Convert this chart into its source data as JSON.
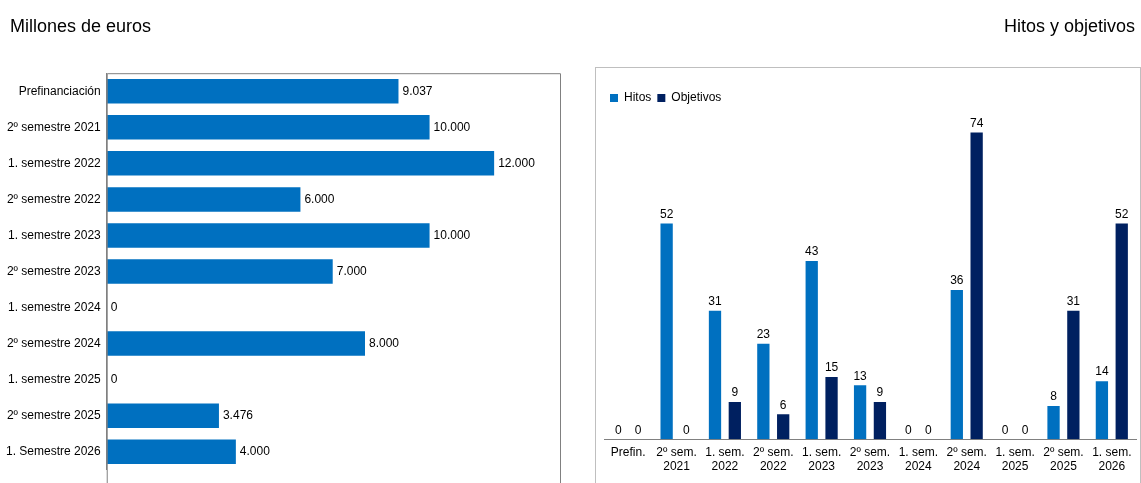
{
  "chart_data": [
    {
      "type": "bar",
      "title": "Millones de euros",
      "orientation": "horizontal",
      "categories": [
        "Prefinanciación",
        "2º semestre 2021",
        "1. semestre 2022",
        "2º semestre 2022",
        "1. semestre 2023",
        "2º semestre 2023",
        "1. semestre 2024",
        "2º semestre 2024",
        "1. semestre 2025",
        "2º semestre 2025",
        "1. Semestre 2026"
      ],
      "values": [
        9037,
        10000,
        12000,
        6000,
        10000,
        7000,
        0,
        8000,
        0,
        3476,
        4000
      ],
      "color": "#0070c0",
      "value_labels": [
        "9.037",
        "10.000",
        "12.000",
        "6.000",
        "10.000",
        "7.000",
        "0",
        "8.000",
        "0",
        "3.476",
        "4.000"
      ],
      "grid": false,
      "tick_labels": "y"
    },
    {
      "type": "bar",
      "title": "Hitos y objetivos",
      "categories": [
        "Prefin.",
        "2º sem. 2021",
        "1. sem. 2022",
        "2º sem. 2022",
        "1. sem. 2023",
        "2º sem. 2023",
        "1. sem. 2024",
        "2º sem. 2024",
        "1. sem. 2025",
        "2º sem. 2025",
        "1. sem. 2026"
      ],
      "series": [
        {
          "name": "Hitos",
          "color": "#0070c0",
          "values": [
            0,
            52,
            31,
            23,
            43,
            13,
            0,
            36,
            0,
            8,
            14
          ]
        },
        {
          "name": "Objetivos",
          "color": "#002060",
          "values": [
            0,
            0,
            9,
            6,
            15,
            9,
            0,
            74,
            0,
            31,
            52
          ]
        }
      ],
      "data_labels": true,
      "legend": "top left",
      "tick_labels": "x",
      "grid": false
    }
  ]
}
